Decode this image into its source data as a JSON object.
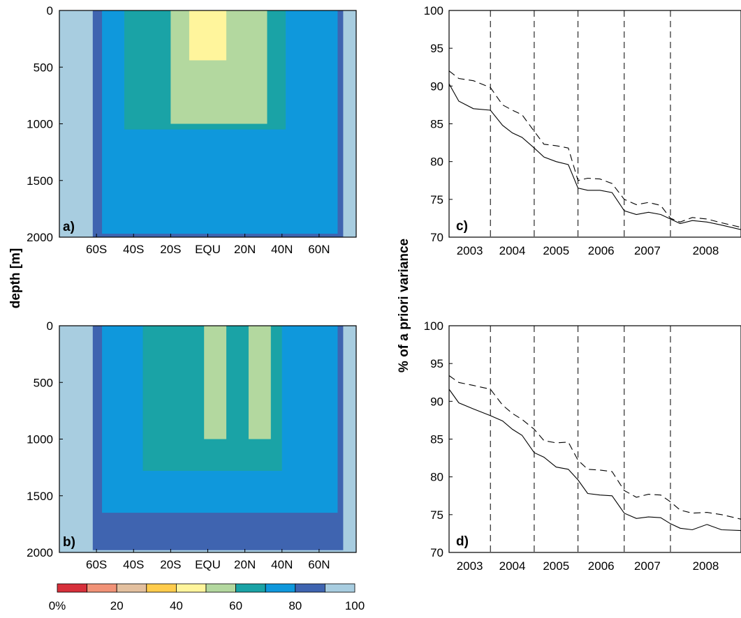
{
  "figure": {
    "depth_label": "depth [m]",
    "variance_label": "% of a priori variance"
  },
  "colors": {
    "scale": [
      "#d7303b",
      "#f19277",
      "#e3c09f",
      "#ffcc4c",
      "#fff59c",
      "#b3d89f",
      "#1aa3a6",
      "#0f98dc",
      "#3f64b0",
      "#a8cde0"
    ],
    "line": "#000000"
  },
  "colorbar": {
    "labels": [
      "0%",
      "20",
      "40",
      "60",
      "80",
      "100"
    ],
    "values": [
      0,
      20,
      40,
      60,
      80,
      100
    ]
  },
  "chart_data": [
    {
      "panel": "a)",
      "type": "heatmap",
      "xticks": [
        "60S",
        "40S",
        "20S",
        "EQU",
        "20N",
        "40N",
        "60N"
      ],
      "xtick_values": [
        -60,
        -40,
        -20,
        0,
        20,
        40,
        60
      ],
      "xlim": [
        -80,
        80
      ],
      "yticks": [
        "0",
        "500",
        "1000",
        "1500",
        "2000"
      ],
      "ytick_values": [
        0,
        500,
        1000,
        1500,
        2000
      ],
      "ylim": [
        0,
        2000
      ],
      "y_reversed": true,
      "zlim": [
        0,
        100
      ],
      "zstep": 10,
      "regions": [
        {
          "level": 100,
          "x": [
            -80,
            80
          ],
          "y": [
            0,
            2000
          ]
        },
        {
          "level": 90,
          "x": [
            -62,
            73
          ],
          "y": [
            0,
            2000
          ]
        },
        {
          "level": 80,
          "x": [
            -57,
            70
          ],
          "y": [
            0,
            1970
          ]
        },
        {
          "level": 70,
          "x": [
            -45,
            42
          ],
          "y": [
            0,
            1050
          ]
        },
        {
          "level": 60,
          "x": [
            -20,
            32
          ],
          "y": [
            0,
            1000
          ]
        },
        {
          "level": 50,
          "x": [
            -10,
            10
          ],
          "y": [
            0,
            440
          ]
        }
      ]
    },
    {
      "panel": "b)",
      "type": "heatmap",
      "xticks": [
        "60S",
        "40S",
        "20S",
        "EQU",
        "20N",
        "40N",
        "60N"
      ],
      "xtick_values": [
        -60,
        -40,
        -20,
        0,
        20,
        40,
        60
      ],
      "xlim": [
        -80,
        80
      ],
      "yticks": [
        "0",
        "500",
        "1000",
        "1500",
        "2000"
      ],
      "ytick_values": [
        0,
        500,
        1000,
        1500,
        2000
      ],
      "ylim": [
        0,
        2000
      ],
      "y_reversed": true,
      "zlim": [
        0,
        100
      ],
      "zstep": 10,
      "regions": [
        {
          "level": 100,
          "x": [
            -80,
            80
          ],
          "y": [
            0,
            2000
          ]
        },
        {
          "level": 90,
          "x": [
            -62,
            73
          ],
          "y": [
            0,
            1980
          ]
        },
        {
          "level": 80,
          "x": [
            -57,
            70
          ],
          "y": [
            0,
            1650
          ]
        },
        {
          "level": 70,
          "x": [
            -35,
            40
          ],
          "y": [
            0,
            1280
          ]
        },
        {
          "level": 60,
          "x": [
            -2,
            10
          ],
          "y": [
            0,
            1000
          ]
        },
        {
          "level": 60,
          "x": [
            22,
            34
          ],
          "y": [
            0,
            1000
          ]
        }
      ]
    },
    {
      "panel": "c)",
      "type": "line",
      "xticks": [
        "2003",
        "2004",
        "2005",
        "2006",
        "2007",
        "2008"
      ],
      "xlim": [
        2003,
        2009.0
      ],
      "year_boundaries": [
        2003.85,
        2004.75,
        2005.65,
        2006.6,
        2007.55
      ],
      "yticks": [
        "70",
        "75",
        "80",
        "85",
        "90",
        "95",
        "100"
      ],
      "ylim": [
        70,
        100
      ],
      "series": [
        {
          "style": "dashed",
          "x": [
            2003.0,
            2003.2,
            2003.5,
            2003.85,
            2004.1,
            2004.3,
            2004.5,
            2004.75,
            2004.95,
            2005.2,
            2005.45,
            2005.65,
            2005.85,
            2006.1,
            2006.35,
            2006.6,
            2006.85,
            2007.1,
            2007.35,
            2007.55,
            2007.75,
            2008.0,
            2008.3,
            2008.6,
            2009.0
          ],
          "y": [
            92.0,
            91.0,
            90.7,
            89.8,
            87.5,
            86.8,
            86.2,
            84.0,
            82.3,
            82.1,
            81.8,
            77.5,
            77.8,
            77.7,
            77.1,
            75.0,
            74.3,
            74.6,
            74.2,
            72.5,
            72.0,
            72.6,
            72.4,
            71.9,
            71.3
          ]
        },
        {
          "style": "solid",
          "x": [
            2003.0,
            2003.2,
            2003.5,
            2003.85,
            2004.1,
            2004.3,
            2004.5,
            2004.75,
            2004.95,
            2005.2,
            2005.45,
            2005.65,
            2005.85,
            2006.1,
            2006.35,
            2006.6,
            2006.85,
            2007.1,
            2007.35,
            2007.55,
            2007.75,
            2008.0,
            2008.3,
            2008.6,
            2009.0
          ],
          "y": [
            90.3,
            88.0,
            87.0,
            86.8,
            84.8,
            83.8,
            83.2,
            81.8,
            80.6,
            80.0,
            79.6,
            76.5,
            76.2,
            76.2,
            75.9,
            73.5,
            73.0,
            73.3,
            73.0,
            72.4,
            71.8,
            72.2,
            72.0,
            71.6,
            71.0
          ]
        }
      ]
    },
    {
      "panel": "d)",
      "type": "line",
      "xticks": [
        "2003",
        "2004",
        "2005",
        "2006",
        "2007",
        "2008"
      ],
      "xlim": [
        2003,
        2009.0
      ],
      "year_boundaries": [
        2003.85,
        2004.75,
        2005.65,
        2006.6,
        2007.55
      ],
      "yticks": [
        "70",
        "75",
        "80",
        "85",
        "90",
        "95",
        "100"
      ],
      "ylim": [
        70,
        100
      ],
      "series": [
        {
          "style": "dashed",
          "x": [
            2003.0,
            2003.2,
            2003.5,
            2003.85,
            2004.1,
            2004.3,
            2004.5,
            2004.75,
            2004.95,
            2005.2,
            2005.45,
            2005.65,
            2005.85,
            2006.1,
            2006.35,
            2006.6,
            2006.85,
            2007.1,
            2007.35,
            2007.55,
            2007.75,
            2008.0,
            2008.3,
            2008.6,
            2009.0
          ],
          "y": [
            93.4,
            92.5,
            92.1,
            91.6,
            89.5,
            88.4,
            87.6,
            86.3,
            84.8,
            84.5,
            84.6,
            82.2,
            81.0,
            80.9,
            80.7,
            78.2,
            77.3,
            77.7,
            77.6,
            76.7,
            75.6,
            75.2,
            75.3,
            75.0,
            74.4
          ]
        },
        {
          "style": "solid",
          "x": [
            2003.0,
            2003.2,
            2003.5,
            2003.85,
            2004.1,
            2004.3,
            2004.5,
            2004.75,
            2004.95,
            2005.2,
            2005.45,
            2005.65,
            2005.85,
            2006.1,
            2006.35,
            2006.6,
            2006.85,
            2007.1,
            2007.35,
            2007.55,
            2007.75,
            2008.0,
            2008.3,
            2008.6,
            2009.0
          ],
          "y": [
            91.6,
            89.8,
            89.0,
            88.1,
            87.4,
            86.3,
            85.5,
            83.2,
            82.6,
            81.3,
            81.0,
            79.6,
            77.8,
            77.6,
            77.5,
            75.2,
            74.5,
            74.7,
            74.6,
            73.8,
            73.2,
            73.0,
            73.7,
            73.0,
            72.9
          ]
        }
      ]
    }
  ]
}
